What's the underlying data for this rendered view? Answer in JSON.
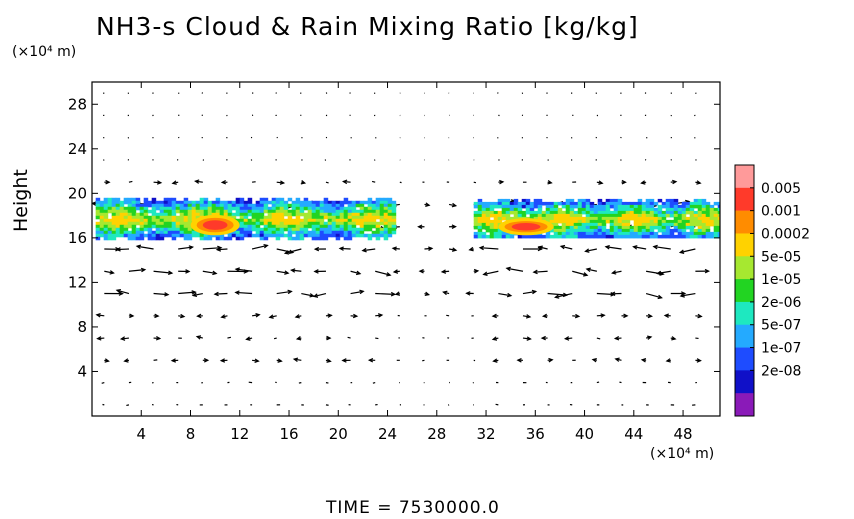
{
  "chart_data": {
    "type": "heatmap",
    "title": "NH3-s Cloud & Rain Mixing Ratio [kg/kg]",
    "ylabel": "Height",
    "x_unit": "(×10⁴ m)",
    "y_unit": "(×10⁴ m)",
    "footer": "TIME  =  7530000.0",
    "xlim": [
      0,
      51
    ],
    "ylim": [
      0,
      30
    ],
    "x_ticks": [
      4,
      8,
      12,
      16,
      20,
      24,
      28,
      32,
      36,
      40,
      44,
      48
    ],
    "x_tick_labels": [
      "4",
      "8",
      "12",
      "16",
      "20",
      "24",
      "28",
      "32",
      "36",
      "40",
      "44",
      "48"
    ],
    "y_ticks": [
      4,
      8,
      12,
      16,
      20,
      24,
      28
    ],
    "y_tick_labels": [
      "4",
      "8",
      "12",
      "16",
      "20",
      "24",
      "28"
    ],
    "colorbar": {
      "labels": [
        "0.005",
        "0.001",
        "0.0002",
        "5e-05",
        "1e-05",
        "2e-06",
        "5e-07",
        "1e-07",
        "2e-08"
      ],
      "colors": [
        "#ff9a9a",
        "#ff3a2a",
        "#ff8c00",
        "#ffd200",
        "#a6e830",
        "#22d422",
        "#1ee8c0",
        "#24aaff",
        "#1e4cff",
        "#1010c8",
        "#8a1ab8"
      ]
    },
    "cloud_patches": [
      {
        "x_start": 0.3,
        "x_end": 24.5,
        "y_bottom": 16.0,
        "y_top": 19.6,
        "core_x": [
          8.5,
          11.5
        ],
        "core_y": [
          16.5,
          17.8
        ],
        "peak": "0.001"
      },
      {
        "x_start": 31.0,
        "x_end": 51.0,
        "y_bottom": 16.0,
        "y_top": 19.5,
        "core_x": [
          33.5,
          37.0
        ],
        "core_y": [
          16.5,
          17.5
        ],
        "peak": "0.001"
      }
    ],
    "wind_vectors": "sparse arrow field on a regular grid, strongest between heights 12 and 18"
  }
}
